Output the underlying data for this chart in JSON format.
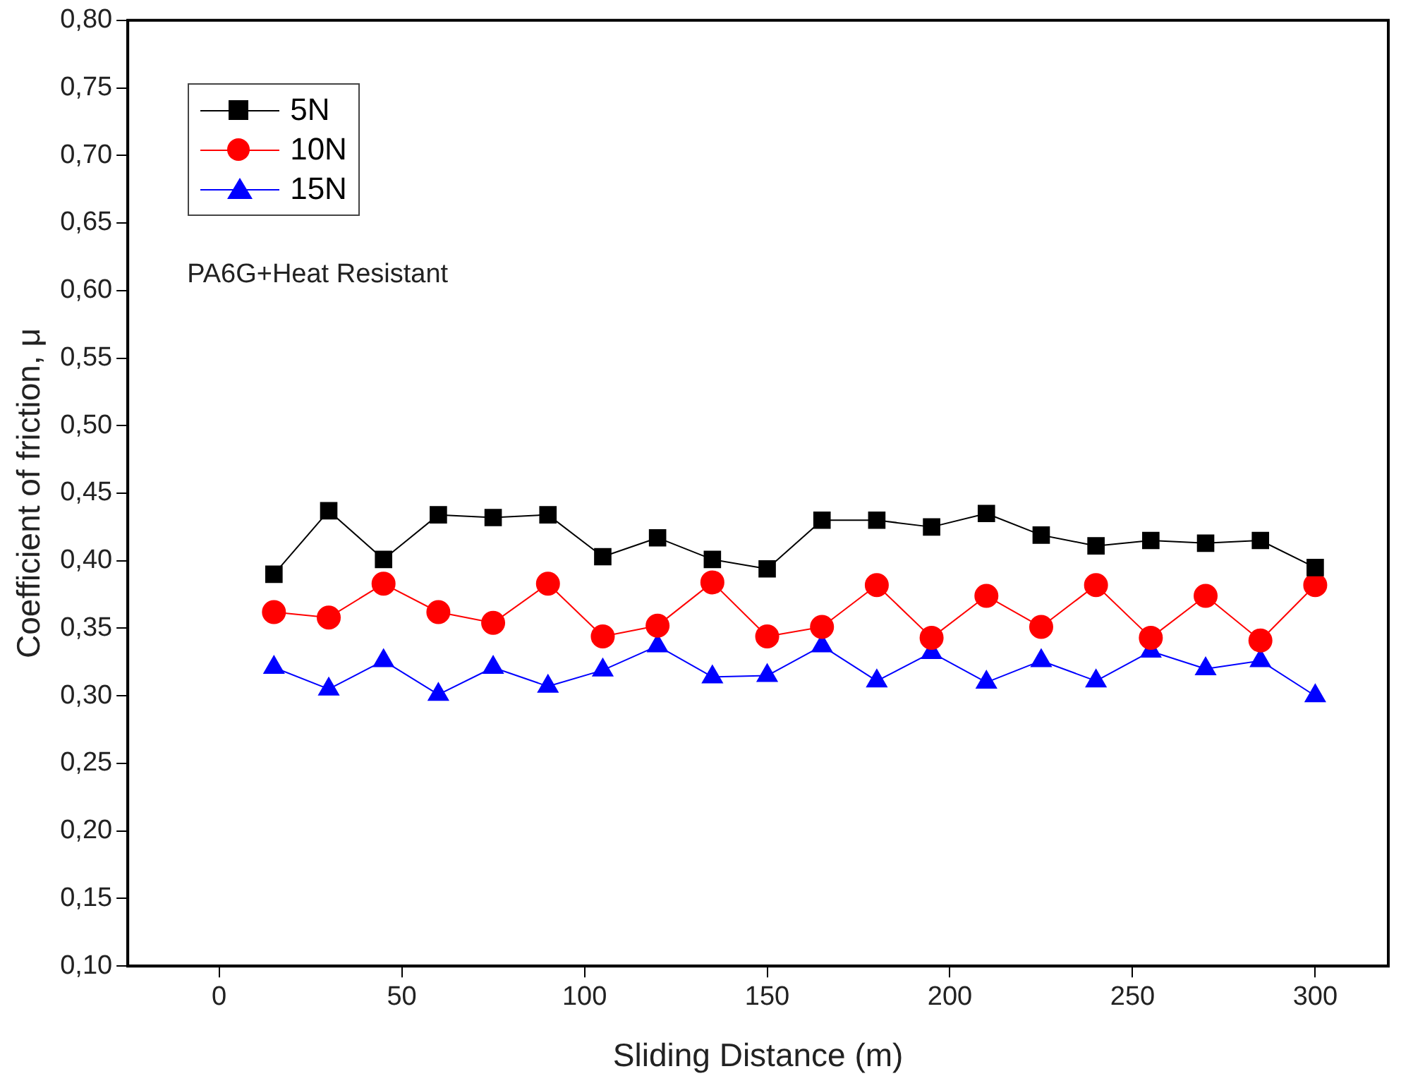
{
  "chart_data": {
    "type": "line",
    "xlabel": "Sliding Distance (m)",
    "ylabel": "Coefficient of friction, μ",
    "x": [
      15,
      30,
      45,
      60,
      75,
      90,
      105,
      120,
      135,
      150,
      165,
      180,
      195,
      210,
      225,
      240,
      255,
      270,
      285,
      300
    ],
    "series": [
      {
        "name": "5N",
        "color": "#000000",
        "marker": "square",
        "values": [
          0.39,
          0.437,
          0.401,
          0.434,
          0.432,
          0.434,
          0.403,
          0.417,
          0.401,
          0.394,
          0.43,
          0.43,
          0.425,
          0.435,
          0.419,
          0.411,
          0.415,
          0.413,
          0.415,
          0.395
        ]
      },
      {
        "name": "10N",
        "color": "#ff0000",
        "marker": "circle",
        "values": [
          0.362,
          0.358,
          0.383,
          0.362,
          0.354,
          0.383,
          0.344,
          0.352,
          0.384,
          0.344,
          0.351,
          0.382,
          0.343,
          0.374,
          0.351,
          0.382,
          0.343,
          0.374,
          0.341,
          0.382
        ]
      },
      {
        "name": "15N",
        "color": "#0000ff",
        "marker": "triangle",
        "values": [
          0.321,
          0.305,
          0.326,
          0.301,
          0.321,
          0.307,
          0.319,
          0.337,
          0.314,
          0.315,
          0.337,
          0.311,
          0.332,
          0.31,
          0.326,
          0.311,
          0.333,
          0.32,
          0.326,
          0.3
        ]
      }
    ],
    "xlim": [
      -25,
      320
    ],
    "xticks": [
      0,
      50,
      100,
      150,
      200,
      250,
      300
    ],
    "ylim": [
      0.1,
      0.8
    ],
    "yticks": [
      {
        "value": 0.1,
        "label": "0,10"
      },
      {
        "value": 0.15,
        "label": "0,15"
      },
      {
        "value": 0.2,
        "label": "0,20"
      },
      {
        "value": 0.25,
        "label": "0,25"
      },
      {
        "value": 0.3,
        "label": "0,30"
      },
      {
        "value": 0.35,
        "label": "0,35"
      },
      {
        "value": 0.4,
        "label": "0,40"
      },
      {
        "value": 0.45,
        "label": "0,45"
      },
      {
        "value": 0.5,
        "label": "0,50"
      },
      {
        "value": 0.55,
        "label": "0,55"
      },
      {
        "value": 0.6,
        "label": "0,60"
      },
      {
        "value": 0.65,
        "label": "0,65"
      },
      {
        "value": 0.7,
        "label": "0,70"
      },
      {
        "value": 0.75,
        "label": "0,75"
      },
      {
        "value": 0.8,
        "label": "0,80"
      }
    ],
    "legend": "top left",
    "grid": false,
    "line_style": "solid",
    "annotations": [
      "PA6G+Heat Resistant"
    ]
  }
}
